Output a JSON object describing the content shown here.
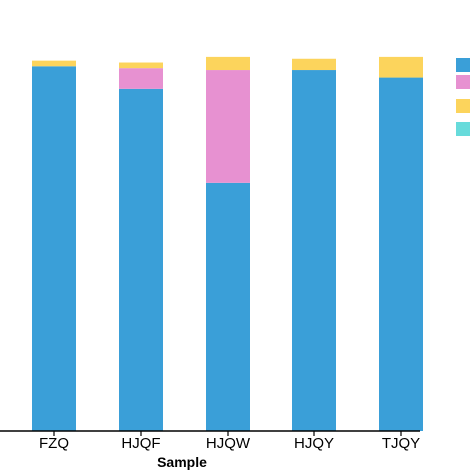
{
  "chart_data": {
    "type": "bar",
    "stacked": true,
    "categories": [
      "FZQ",
      "HJQF",
      "HJQW",
      "HJQY",
      "TJQY"
    ],
    "series": [
      {
        "color": "#3a9fd8",
        "values": [
          0.97,
          0.91,
          0.66,
          0.96,
          0.94
        ]
      },
      {
        "color": "#e791d1",
        "values": [
          0.0,
          0.055,
          0.3,
          0.0,
          0.0
        ]
      },
      {
        "color": "#fcd45c",
        "values": [
          0.015,
          0.015,
          0.035,
          0.03,
          0.055
        ]
      },
      {
        "color": "#67dbdb",
        "values": [
          0,
          0,
          0,
          0,
          0
        ]
      }
    ],
    "xlabel": "Sample",
    "ylabel": "",
    "ylim": [
      0,
      1
    ],
    "grid": false,
    "legend_position": "right"
  }
}
